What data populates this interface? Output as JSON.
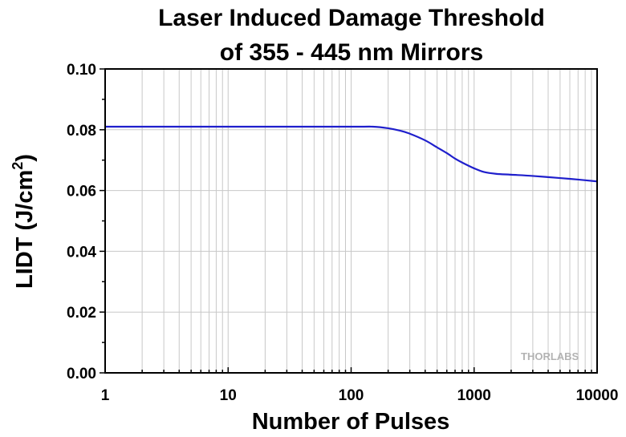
{
  "chart_data": {
    "type": "line",
    "title_lines": [
      "Laser Induced Damage Threshold",
      "of 355 - 445 nm Mirrors"
    ],
    "xlabel": "Number of Pulses",
    "ylabel_main": "LIDT (J/cm",
    "ylabel_sup": "2",
    "ylabel_close": ")",
    "xscale": "log",
    "xlim": [
      1,
      10000
    ],
    "ylim": [
      0,
      0.1
    ],
    "x_ticks": [
      "1",
      "10",
      "100",
      "1000",
      "10000"
    ],
    "y_ticks": [
      "0.00",
      "0.02",
      "0.04",
      "0.06",
      "0.08",
      "0.10"
    ],
    "grid": true,
    "series": [
      {
        "color": "#1f1fcc",
        "x": [
          1,
          10,
          100,
          150,
          200,
          250,
          300,
          400,
          500,
          600,
          700,
          800,
          1000,
          1200,
          1500,
          2000,
          3000,
          5000,
          7000,
          10000
        ],
        "y": [
          0.081,
          0.081,
          0.081,
          0.081,
          0.0805,
          0.0797,
          0.0787,
          0.0765,
          0.0742,
          0.0723,
          0.0705,
          0.0692,
          0.0673,
          0.0661,
          0.0655,
          0.0652,
          0.0648,
          0.0641,
          0.0636,
          0.063
        ]
      }
    ],
    "watermark": "THORLABS"
  }
}
